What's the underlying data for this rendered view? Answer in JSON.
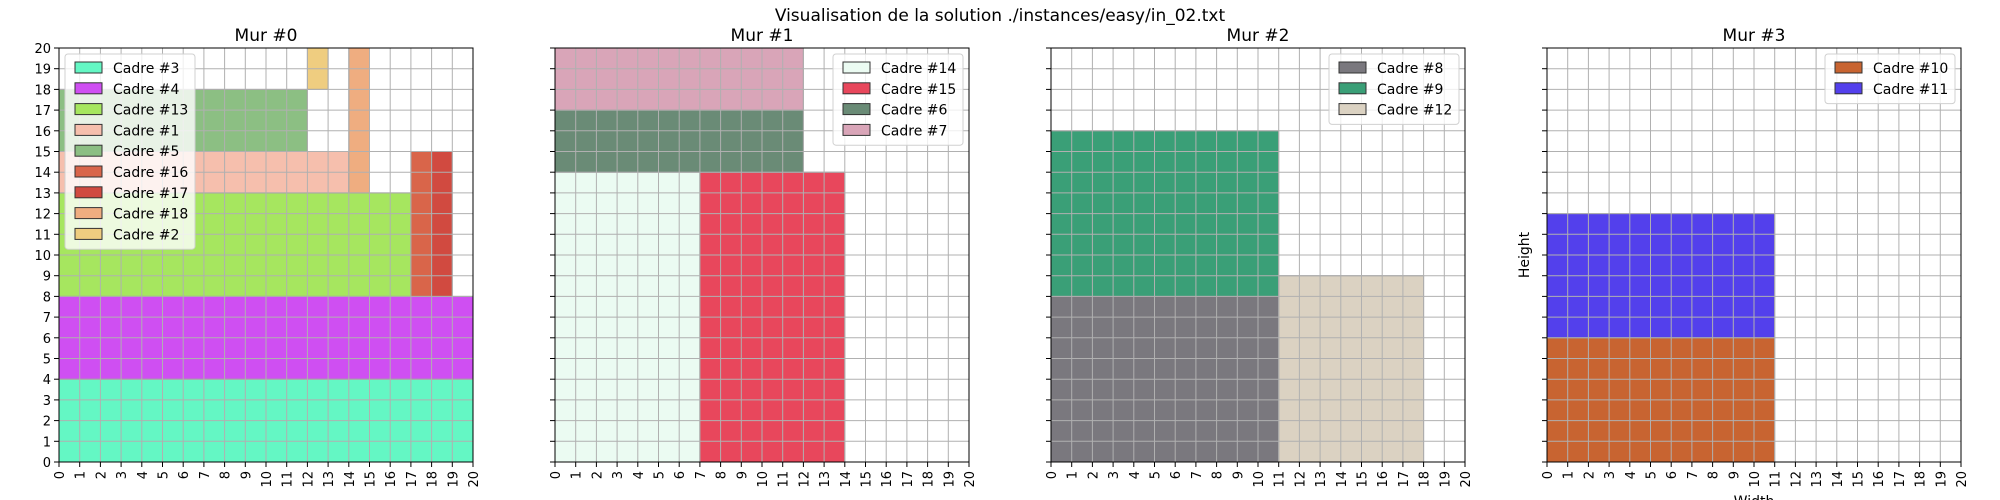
{
  "figure_title": "Visualisation de la solution ./instances/easy/in_02.txt",
  "chart_data": [
    {
      "type": "rectangles",
      "title": "Mur #0",
      "xlabel": "",
      "ylabel": "",
      "xlim": [
        0,
        20
      ],
      "ylim": [
        0,
        20
      ],
      "xticks": [
        0,
        1,
        2,
        3,
        4,
        5,
        6,
        7,
        8,
        9,
        10,
        11,
        12,
        13,
        14,
        15,
        16,
        17,
        18,
        19,
        20
      ],
      "yticks": [
        0,
        1,
        2,
        3,
        4,
        5,
        6,
        7,
        8,
        9,
        10,
        11,
        12,
        13,
        14,
        15,
        16,
        17,
        18,
        19,
        20
      ],
      "grid": true,
      "legend": "upper-left",
      "rects": [
        {
          "name": "Cadre #3",
          "x": 0,
          "y": 0,
          "w": 20,
          "h": 4,
          "color": "#64f7c4"
        },
        {
          "name": "Cadre #4",
          "x": 0,
          "y": 4,
          "w": 20,
          "h": 4,
          "color": "#cf4ff2"
        },
        {
          "name": "Cadre #13",
          "x": 0,
          "y": 8,
          "w": 17,
          "h": 5,
          "color": "#a6e65f"
        },
        {
          "name": "Cadre #1",
          "x": 0,
          "y": 13,
          "w": 14,
          "h": 2,
          "color": "#f6bfad"
        },
        {
          "name": "Cadre #5",
          "x": 0,
          "y": 15,
          "w": 12,
          "h": 3,
          "color": "#8cbf83"
        },
        {
          "name": "Cadre #16",
          "x": 17,
          "y": 8,
          "w": 1,
          "h": 7,
          "color": "#d9654a"
        },
        {
          "name": "Cadre #17",
          "x": 18,
          "y": 8,
          "w": 1,
          "h": 7,
          "color": "#d14a40"
        },
        {
          "name": "Cadre #18",
          "x": 14,
          "y": 13,
          "w": 1,
          "h": 7,
          "color": "#efad80"
        },
        {
          "name": "Cadre #2",
          "x": 12,
          "y": 18,
          "w": 1,
          "h": 2,
          "color": "#efcd80"
        }
      ]
    },
    {
      "type": "rectangles",
      "title": "Mur #1",
      "xlabel": "",
      "ylabel": "",
      "xlim": [
        0,
        20
      ],
      "ylim": [
        0,
        20
      ],
      "xticks": [
        0,
        1,
        2,
        3,
        4,
        5,
        6,
        7,
        8,
        9,
        10,
        11,
        12,
        13,
        14,
        15,
        16,
        17,
        18,
        19,
        20
      ],
      "yticks": [],
      "grid": true,
      "legend": "upper-right",
      "rects": [
        {
          "name": "Cadre #14",
          "x": 0,
          "y": 0,
          "w": 7,
          "h": 14,
          "color": "#ebfbf2"
        },
        {
          "name": "Cadre #15",
          "x": 7,
          "y": 0,
          "w": 7,
          "h": 14,
          "color": "#e8475c"
        },
        {
          "name": "Cadre #6",
          "x": 0,
          "y": 14,
          "w": 12,
          "h": 3,
          "color": "#6a8b76"
        },
        {
          "name": "Cadre #7",
          "x": 0,
          "y": 17,
          "w": 12,
          "h": 3,
          "color": "#d9a5b8"
        }
      ]
    },
    {
      "type": "rectangles",
      "title": "Mur #2",
      "xlabel": "",
      "ylabel": "",
      "xlim": [
        0,
        20
      ],
      "ylim": [
        0,
        20
      ],
      "xticks": [
        0,
        1,
        2,
        3,
        4,
        5,
        6,
        7,
        8,
        9,
        10,
        11,
        12,
        13,
        14,
        15,
        16,
        17,
        18,
        19,
        20
      ],
      "yticks": [],
      "grid": true,
      "legend": "upper-right",
      "rects": [
        {
          "name": "Cadre #8",
          "x": 0,
          "y": 0,
          "w": 11,
          "h": 8,
          "color": "#7a787e"
        },
        {
          "name": "Cadre #9",
          "x": 0,
          "y": 8,
          "w": 11,
          "h": 8,
          "color": "#3a9f77"
        },
        {
          "name": "Cadre #12",
          "x": 11,
          "y": 0,
          "w": 7,
          "h": 9,
          "color": "#dbd2c2"
        }
      ]
    },
    {
      "type": "rectangles",
      "title": "Mur #3",
      "xlabel": "Width",
      "ylabel": "Height",
      "xlim": [
        0,
        20
      ],
      "ylim": [
        0,
        20
      ],
      "xticks": [
        0,
        1,
        2,
        3,
        4,
        5,
        6,
        7,
        8,
        9,
        10,
        11,
        12,
        13,
        14,
        15,
        16,
        17,
        18,
        19,
        20
      ],
      "yticks": [],
      "grid": true,
      "legend": "upper-right",
      "rects": [
        {
          "name": "Cadre #10",
          "x": 0,
          "y": 0,
          "w": 11,
          "h": 6,
          "color": "#c86431"
        },
        {
          "name": "Cadre #11",
          "x": 0,
          "y": 6,
          "w": 11,
          "h": 6,
          "color": "#5340ec"
        }
      ]
    }
  ]
}
